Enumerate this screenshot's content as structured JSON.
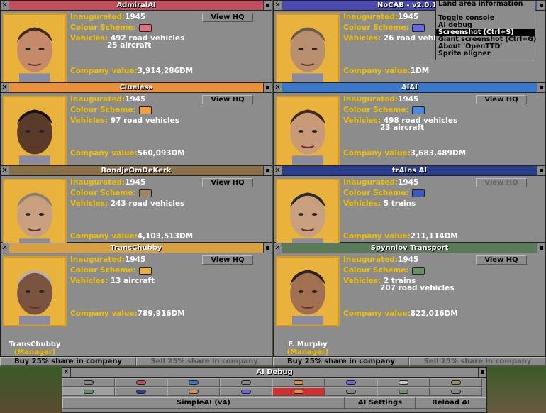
{
  "labels": {
    "inaugurated": "Inaugurated:",
    "colour_scheme": "Colour Scheme:",
    "vehicles": "Vehicles:",
    "company_value": "Company value:",
    "view_hq": "View HQ",
    "close": "✕",
    "pin": "📌"
  },
  "companies": [
    {
      "name": "AdmiralAI",
      "title_color": "#c0505e",
      "inaugurated": "1945",
      "scheme_color": "#e07080",
      "vehicles_line1": "492 road vehicles",
      "vehicles_line2": "25 aircraft",
      "value": "3,914,286DM",
      "hq_enabled": true
    },
    {
      "name": "NoCAB - v2.0.19",
      "title_color": "#4a4ab0",
      "inaugurated": "1945",
      "scheme_color": "#6a6ae0",
      "vehicles_line1": "26 road vehicle",
      "vehicles_line2": "",
      "value": "1DM",
      "hq_enabled": true
    },
    {
      "name": "Clueless",
      "title_color": "#e8903c",
      "inaugurated": "1945",
      "scheme_color": "#f0a040",
      "vehicles_line1": "97 road vehicles",
      "vehicles_line2": "",
      "value": "560,093DM",
      "hq_enabled": true
    },
    {
      "name": "AIAI",
      "title_color": "#3c78c8",
      "inaugurated": "1945",
      "scheme_color": "#4a8ae0",
      "vehicles_line1": "498 road vehicles",
      "vehicles_line2": "23 aircraft",
      "value": "3,683,489DM",
      "hq_enabled": true
    },
    {
      "name": "RondjeOmDeKerk",
      "title_color": "#8a7048",
      "inaugurated": "1945",
      "scheme_color": "#a08860",
      "vehicles_line1": "243 road vehicles",
      "vehicles_line2": "",
      "value": "4,103,513DM",
      "hq_enabled": true
    },
    {
      "name": "trAIns AI",
      "title_color": "#2a3c8c",
      "inaugurated": "1945",
      "scheme_color": "#3a5ac0",
      "vehicles_line1": "5 trains",
      "vehicles_line2": "",
      "value": "211,114DM",
      "hq_enabled": false
    },
    {
      "name": "TransChubby",
      "title_color": "#d8a040",
      "inaugurated": "1945",
      "scheme_color": "#e8b040",
      "vehicles_line1": "13 aircraft",
      "vehicles_line2": "",
      "value": "789,916DM",
      "hq_enabled": true,
      "manager": "TransChubby",
      "role": "(Manager)"
    },
    {
      "name": "Spynnlov Transport",
      "title_color": "#5a7a58",
      "inaugurated": "1945",
      "scheme_color": "#6a9068",
      "vehicles_line1": "2 trains",
      "vehicles_line2": "207 road vehicles",
      "value": "822,016DM",
      "hq_enabled": true,
      "manager": "F. Murphy",
      "role": "(Manager)"
    }
  ],
  "bottom": {
    "buy_left": "Buy 25% share in company",
    "sell_left": "Sell 25% share in company",
    "buy_right": "Buy 25% share in company",
    "sell_right": "Sell 25% share in company"
  },
  "menu": {
    "items": [
      "Land area information",
      "Toggle console",
      "AI debug",
      "Screenshot (Ctrl+S)",
      "Giant screenshot (Ctrl+G)",
      "About 'OpenTTD'",
      "Sprite aligner"
    ],
    "selected_index": 3
  },
  "aidebug": {
    "title": "AI Debug",
    "row1_colors": [
      "#888",
      "#c0505e",
      "#3c78c8",
      "#888",
      "#e8903c",
      "#6a6ae0",
      "#c8c8c8",
      "#a08860"
    ],
    "row2_colors": [
      "#6a9068",
      "#2a3c8c",
      "#e8903c",
      "#6a6ae0",
      "#e8903c",
      "#888",
      "#6a9068",
      "#888"
    ],
    "selected_ai": "SimpleAI (v4)",
    "ai_settings": "AI Settings",
    "reload_ai": "Reload AI"
  }
}
